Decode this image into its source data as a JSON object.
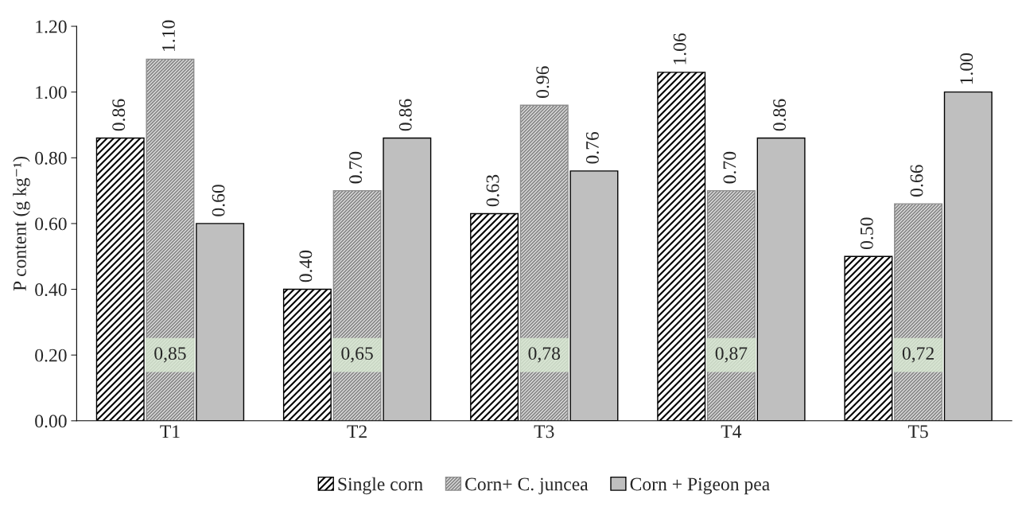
{
  "chart_data": {
    "type": "bar",
    "ylabel": "P content (g kg⁻¹)",
    "categories": [
      "T1",
      "T2",
      "T3",
      "T4",
      "T5"
    ],
    "series": [
      {
        "name": "Single corn",
        "color": "#000000",
        "values": [
          0.86,
          0.4,
          0.63,
          1.06,
          0.5
        ],
        "value_labels": [
          "0.86",
          "0.40",
          "0.63",
          "1.06",
          "0.50"
        ]
      },
      {
        "name": "Corn+ C. juncea",
        "color": "#8c8c8c",
        "values": [
          1.1,
          0.7,
          0.96,
          0.7,
          0.66
        ],
        "value_labels": [
          "1.10",
          "0.70",
          "0.96",
          "0.70",
          "0.66"
        ]
      },
      {
        "name": "Corn + Pigeon pea",
        "color": "#bfbfbf",
        "values": [
          0.6,
          0.86,
          0.76,
          0.86,
          1.0
        ],
        "value_labels": [
          "0.60",
          "0.86",
          "0.76",
          "0.86",
          "1.00"
        ]
      }
    ],
    "ylim": [
      0,
      1.2
    ],
    "yticks": [
      {
        "value": 0,
        "label": "0.00"
      },
      {
        "value": 0.2,
        "label": "0.20"
      },
      {
        "value": 0.4,
        "label": "0.40"
      },
      {
        "value": 0.6,
        "label": "0.60"
      },
      {
        "value": 0.8,
        "label": "0.80"
      },
      {
        "value": 1.0,
        "label": "1.00"
      },
      {
        "value": 1.2,
        "label": "1.20"
      }
    ],
    "annotations": [
      "0,85",
      "0,65",
      "0,78",
      "0,87",
      "0,72"
    ],
    "grid": false,
    "legend": "bottom"
  }
}
